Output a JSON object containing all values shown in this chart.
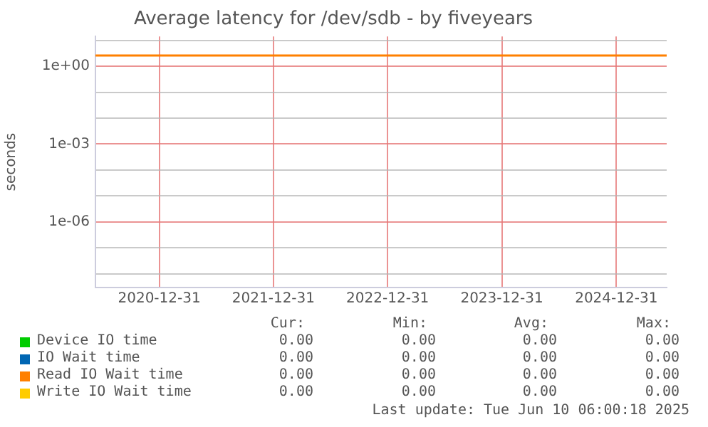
{
  "chart_data": {
    "type": "line",
    "title": "Average latency for /dev/sdb - by fiveyears",
    "ylabel": "seconds",
    "x": [
      "2020-06-10",
      "2025-06-10"
    ],
    "series": [
      {
        "name": "Device IO time",
        "color": "#00cc00",
        "values": [
          null,
          null
        ]
      },
      {
        "name": "IO Wait time",
        "color": "#0066b3",
        "values": [
          null,
          null
        ]
      },
      {
        "name": "Read IO Wait time",
        "color": "#ff8000",
        "values": [
          2.6,
          2.6
        ]
      },
      {
        "name": "Write IO Wait time",
        "color": "#ffcc00",
        "values": [
          null,
          null
        ]
      }
    ],
    "log": "y",
    "ylim": [
      3e-09,
      14
    ],
    "yticks": [
      {
        "value": 10,
        "label": null
      },
      {
        "value": 1,
        "label": "1e+00"
      },
      {
        "value": 0.1,
        "label": null
      },
      {
        "value": 0.01,
        "label": null
      },
      {
        "value": 0.001,
        "label": "1e-03"
      },
      {
        "value": 0.0001,
        "label": null
      },
      {
        "value": 1e-05,
        "label": null
      },
      {
        "value": 1e-06,
        "label": "1e-06"
      },
      {
        "value": 1e-07,
        "label": null
      },
      {
        "value": 1e-08,
        "label": null
      }
    ],
    "xlim": [
      "2020-06-10",
      "2025-06-10"
    ],
    "xticks": [
      "2020-12-31",
      "2021-12-31",
      "2022-12-31",
      "2023-12-31",
      "2024-12-31"
    ],
    "grid": true,
    "legend": "bottom",
    "marker": "none",
    "line_style": "solid",
    "annotations": [
      "Cur:",
      "Min:",
      "Avg:",
      "Max:",
      "0.00",
      "0.00",
      "0.00",
      "0.00",
      "0.00",
      "0.00",
      "0.00",
      "0.00",
      "0.00",
      "0.00",
      "0.00",
      "0.00",
      "0.00",
      "0.00",
      "0.00",
      "0.00",
      "Last update: Tue Jun 10 06:00:18 2025"
    ]
  }
}
